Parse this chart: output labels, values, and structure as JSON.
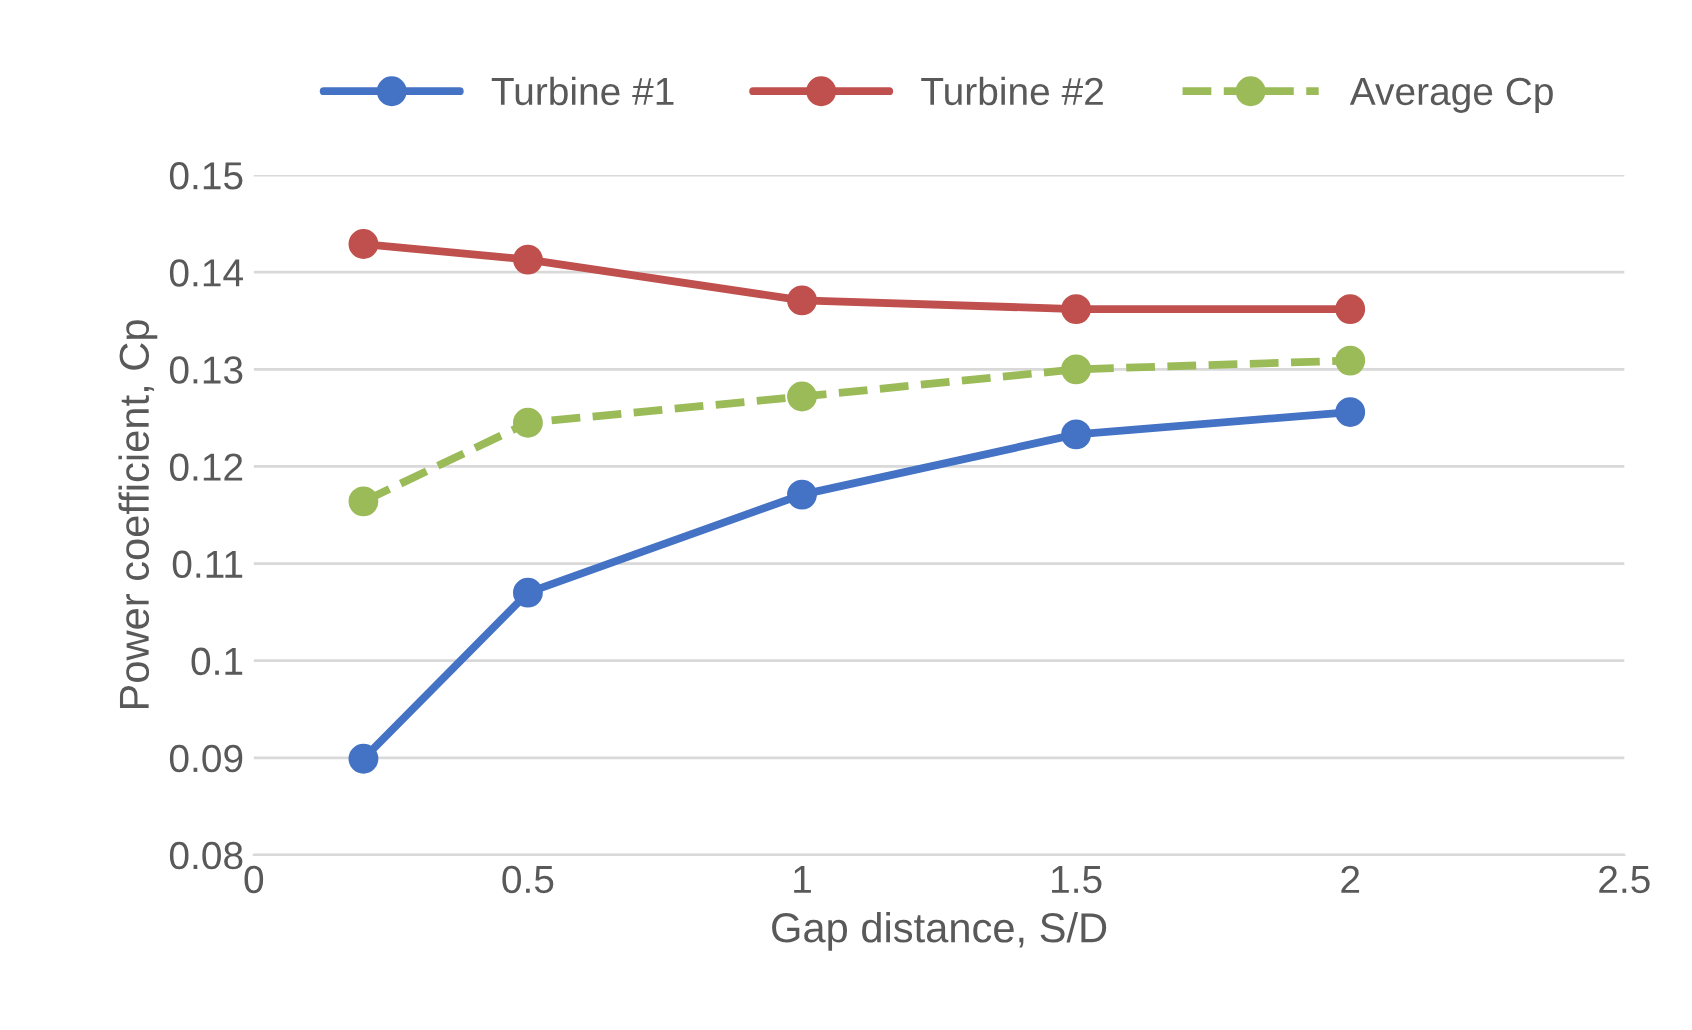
{
  "chart_data": {
    "type": "line",
    "xlabel": "Gap distance, S/D",
    "ylabel": "Power coefficient, Cp",
    "x": [
      0.2,
      0.5,
      1,
      1.5,
      2
    ],
    "series": [
      {
        "name": "Turbine #1",
        "color": "#4472c4",
        "values": [
          0.0899,
          0.107,
          0.1171,
          0.1233,
          0.1256
        ],
        "line_style": "solid"
      },
      {
        "name": "Turbine #2",
        "color": "#c0504d",
        "values": [
          0.1429,
          0.1413,
          0.1371,
          0.1362,
          0.1362
        ],
        "line_style": "solid"
      },
      {
        "name": "Average Cp",
        "color": "#9bbb59",
        "values": [
          0.1164,
          0.1245,
          0.1272,
          0.13,
          0.1309
        ],
        "line_style": "dashed"
      }
    ],
    "xlim": [
      0,
      2.5
    ],
    "xticks": [
      0,
      0.5,
      1,
      1.5,
      2,
      2.5
    ],
    "ylim": [
      0.08,
      0.15
    ],
    "yticks": [
      0.08,
      0.09,
      0.1,
      0.11,
      0.12,
      0.13,
      0.14,
      0.15
    ],
    "grid": "y",
    "legend": "top",
    "marker": "circle"
  }
}
